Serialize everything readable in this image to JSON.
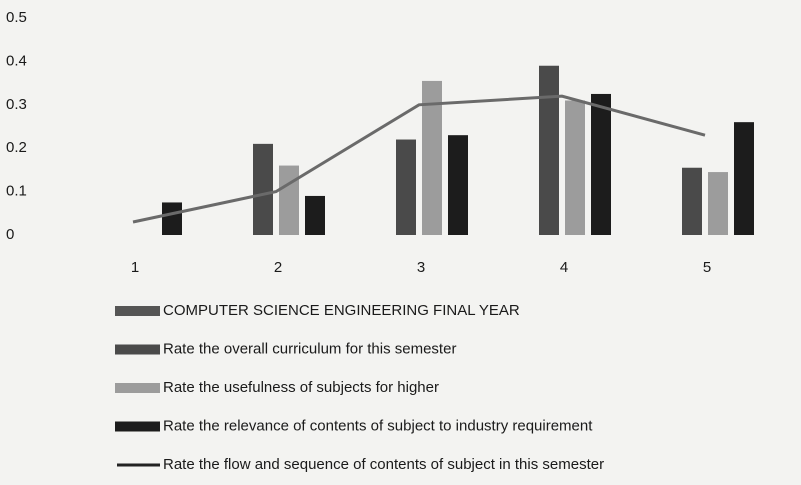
{
  "chart_data": {
    "type": "bar",
    "categories": [
      "1",
      "2",
      "3",
      "4",
      "5"
    ],
    "ylim": [
      0,
      0.5
    ],
    "yticks": [
      0,
      0.1,
      0.2,
      0.3,
      0.4,
      0.5
    ],
    "grid": false,
    "legend": "bottom",
    "series": [
      {
        "name": "COMPUTER SCIENCE ENGINEERING FINAL YEAR",
        "color": "#555555",
        "values": [
          null,
          null,
          null,
          null,
          null
        ]
      },
      {
        "name": "Rate the overall curriculum for this semester",
        "color": "#4a4a4a",
        "values": [
          null,
          0.21,
          0.22,
          0.39,
          0.155
        ]
      },
      {
        "name": "Rate the usefulness of subjects for higher",
        "color": "#9c9c9c",
        "values": [
          null,
          0.16,
          0.355,
          0.31,
          0.145
        ]
      },
      {
        "name": "Rate the relevance of contents of subject to industry requirement",
        "color": "#1c1c1c",
        "values": [
          0.075,
          0.09,
          0.23,
          0.325,
          0.26
        ]
      },
      {
        "name": "Rate the flow and sequence of contents of subject in this semester",
        "color": "#6a6a6a",
        "type": "line",
        "values": [
          0.03,
          0.1,
          0.3,
          0.32,
          0.23
        ]
      }
    ]
  }
}
